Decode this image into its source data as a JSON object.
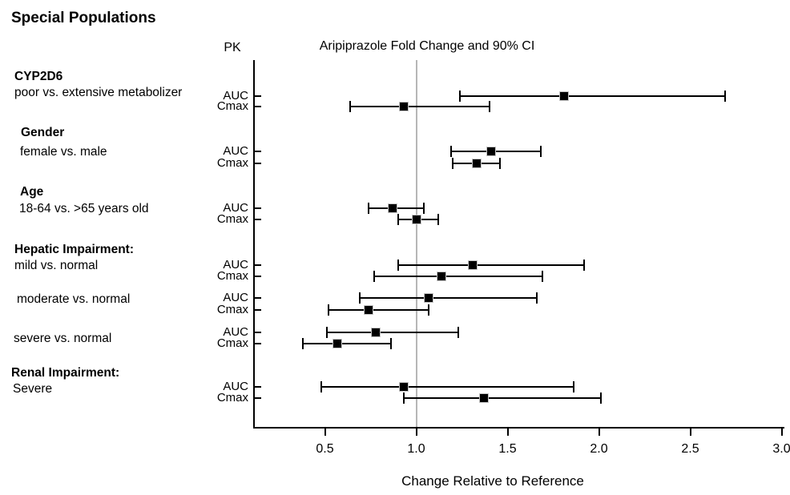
{
  "title": "Special Populations",
  "header": {
    "pk_label": "PK",
    "ci_title": "Aripiprazole Fold Change and 90% CI"
  },
  "xaxis": {
    "title": "Change Relative to Reference",
    "tick_labels": [
      "0.5",
      "1.0",
      "1.5",
      "2.0",
      "2.5",
      "3.0"
    ]
  },
  "colors": {
    "marker": "#000000",
    "marker_outline": "#c4c4c4",
    "axis": "#000000",
    "reference_line": "#b6b6b6",
    "text": "#000000",
    "background": "#ffffff"
  },
  "chart_data": {
    "type": "scatter",
    "variant": "forest-plot",
    "title": "Special Populations",
    "subtitle": "Aripiprazole Fold Change and 90% CI",
    "pk_column_header": "PK",
    "xlabel": "Change Relative to Reference",
    "xlim": [
      0.11,
      3.02
    ],
    "xticks": [
      0.5,
      1.0,
      1.5,
      2.0,
      2.5,
      3.0
    ],
    "reference_line_x": 1.0,
    "marker": "filled-square",
    "interval": "90% CI",
    "grid": false,
    "legend": false,
    "groups": [
      {
        "heading": "CYP2D6",
        "subheading": "poor vs. extensive metabolizer",
        "rows": [
          {
            "pk": "AUC",
            "estimate": 1.81,
            "ci_low": 1.24,
            "ci_high": 2.69
          },
          {
            "pk": "Cmax",
            "estimate": 0.93,
            "ci_low": 0.64,
            "ci_high": 1.4
          }
        ]
      },
      {
        "heading": "Gender",
        "subheading": "female vs. male",
        "rows": [
          {
            "pk": "AUC",
            "estimate": 1.41,
            "ci_low": 1.19,
            "ci_high": 1.68
          },
          {
            "pk": "Cmax",
            "estimate": 1.33,
            "ci_low": 1.2,
            "ci_high": 1.46
          }
        ]
      },
      {
        "heading": "Age",
        "subheading": "18-64 vs. >65 years old",
        "rows": [
          {
            "pk": "AUC",
            "estimate": 0.87,
            "ci_low": 0.74,
            "ci_high": 1.04
          },
          {
            "pk": "Cmax",
            "estimate": 1.0,
            "ci_low": 0.9,
            "ci_high": 1.12
          }
        ]
      },
      {
        "heading": "Hepatic Impairment:",
        "subheading": "mild vs. normal",
        "rows": [
          {
            "pk": "AUC",
            "estimate": 1.31,
            "ci_low": 0.9,
            "ci_high": 1.92
          },
          {
            "pk": "Cmax",
            "estimate": 1.14,
            "ci_low": 0.77,
            "ci_high": 1.69
          }
        ]
      },
      {
        "heading": "",
        "subheading": "moderate vs. normal",
        "rows": [
          {
            "pk": "AUC",
            "estimate": 1.07,
            "ci_low": 0.69,
            "ci_high": 1.66
          },
          {
            "pk": "Cmax",
            "estimate": 0.74,
            "ci_low": 0.52,
            "ci_high": 1.07
          }
        ]
      },
      {
        "heading": "",
        "subheading": "severe vs. normal",
        "rows": [
          {
            "pk": "AUC",
            "estimate": 0.78,
            "ci_low": 0.51,
            "ci_high": 1.23
          },
          {
            "pk": "Cmax",
            "estimate": 0.57,
            "ci_low": 0.38,
            "ci_high": 0.86
          }
        ]
      },
      {
        "heading": "Renal Impairment:",
        "subheading": "Severe",
        "rows": [
          {
            "pk": "AUC",
            "estimate": 0.93,
            "ci_low": 0.48,
            "ci_high": 1.86
          },
          {
            "pk": "Cmax",
            "estimate": 1.37,
            "ci_low": 0.93,
            "ci_high": 2.01
          }
        ]
      }
    ]
  }
}
